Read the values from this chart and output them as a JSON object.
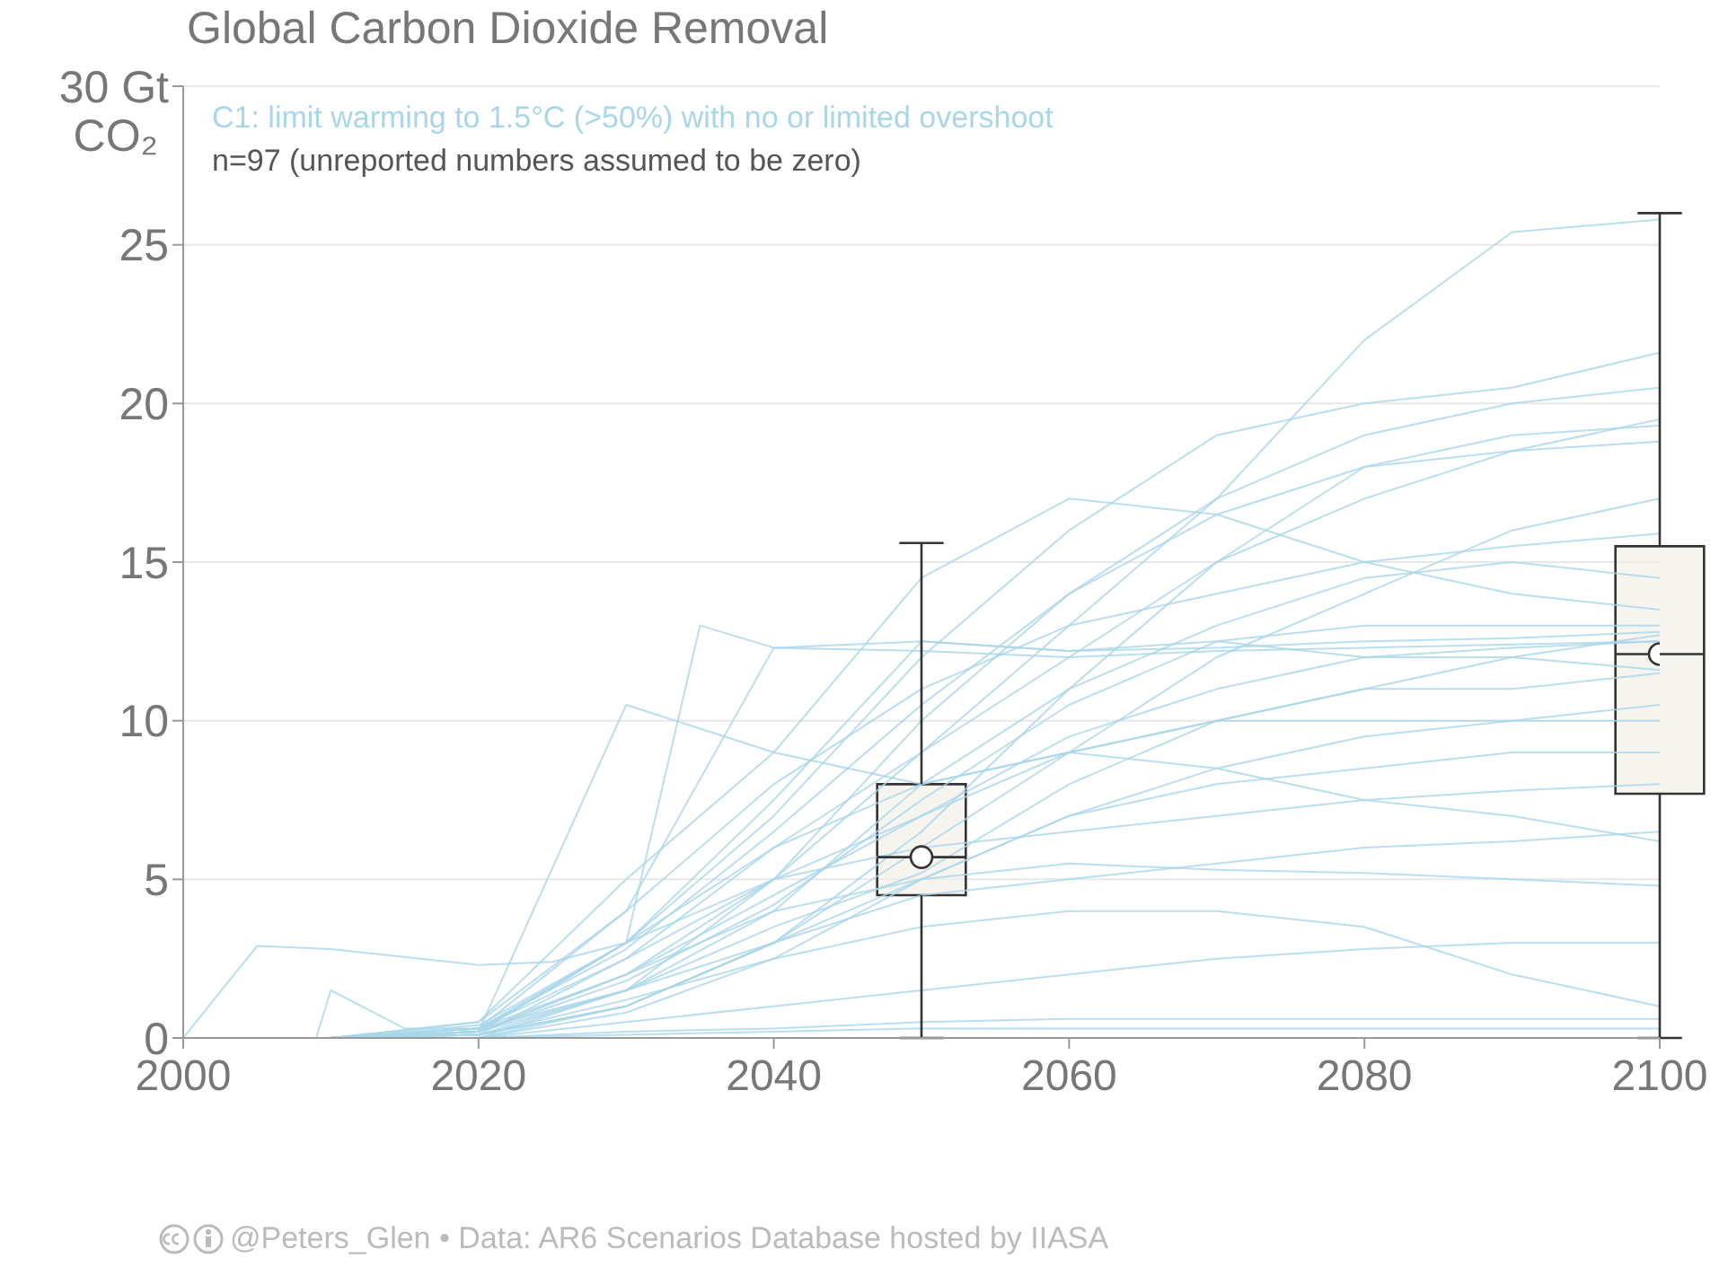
{
  "chart_data": {
    "type": "line",
    "title": "Global Carbon Dioxide Removal",
    "subtitle": "C1: limit warming to 1.5°C (>50%) with no or limited overshoot",
    "ylabel": "CO₂",
    "annotations": [
      "n=97 (unreported numbers assumed to be zero)",
      "@Peters_Glen • Data: AR6 Scenarios Database hosted by IIASA"
    ],
    "x": [
      2000,
      2010,
      2020,
      2030,
      2040,
      2050,
      2060,
      2070,
      2080,
      2090,
      2100
    ],
    "xlim": [
      2000,
      2100
    ],
    "xticks": [
      2000,
      2020,
      2040,
      2060,
      2080,
      2100
    ],
    "ylim": [
      0,
      30
    ],
    "yticks": [
      0,
      5,
      10,
      15,
      20,
      25,
      {
        "value": 30,
        "label": "30 Gt"
      }
    ],
    "grid": "y",
    "series": [
      {
        "color": "#a9d6e8",
        "values": [
          0,
          0,
          0.3,
          2,
          5,
          9,
          13,
          17,
          22,
          25.4,
          25.8
        ]
      },
      {
        "color": "#a9d6e8",
        "values": [
          0,
          0,
          0.4,
          3,
          7,
          12,
          16,
          19,
          20,
          20.5,
          21.6
        ]
      },
      {
        "color": "#a9d6e8",
        "values": [
          0,
          0,
          0.2,
          1.5,
          5,
          10,
          14,
          17,
          19,
          20,
          20.5
        ]
      },
      {
        "color": "#a9d6e8",
        "values": [
          0,
          0,
          0.1,
          2.5,
          6,
          9,
          12,
          15,
          17,
          18.5,
          19.5
        ]
      },
      {
        "color": "#a9d6e8",
        "values": [
          0,
          0,
          0.3,
          3,
          7.5,
          12.5,
          12.2,
          12.3,
          12.5,
          12.6,
          12.8
        ]
      },
      {
        "color": "#a9d6e8",
        "values": [
          0,
          0,
          0,
          1,
          3,
          6,
          9,
          12,
          14,
          16,
          17
        ]
      },
      {
        "color": "#a9d6e8",
        "values": [
          0,
          0,
          0.2,
          2,
          4.5,
          7,
          9.5,
          11,
          12,
          12.3,
          12.5
        ]
      },
      {
        "color": "#a9d6e8",
        "values": [
          0,
          0,
          0.1,
          1.5,
          3.5,
          5.2,
          8,
          10,
          11,
          12,
          11.6
        ]
      },
      {
        "color": "#a9d6e8",
        "values": [
          0,
          0,
          0,
          0.8,
          2.5,
          5,
          7,
          8.5,
          9.5,
          10,
          10.5
        ]
      },
      {
        "color": "#a9d6e8",
        "values": [
          0,
          0,
          0.3,
          2.5,
          5,
          6,
          6.5,
          7,
          7.5,
          7.8,
          8
        ]
      },
      {
        "color": "#a9d6e8",
        "values": [
          0,
          0,
          0.2,
          2,
          4,
          5,
          5.5,
          5.3,
          5.2,
          5,
          4.8
        ]
      },
      {
        "color": "#a9d6e8",
        "values": [
          0,
          0,
          0.1,
          1,
          3,
          4.5,
          5,
          5.5,
          6,
          6.2,
          6.5
        ]
      },
      {
        "color": "#a9d6e8",
        "values": [
          0,
          0,
          0,
          0.5,
          1,
          1.5,
          2,
          2.5,
          2.8,
          3,
          3
        ]
      },
      {
        "color": "#a9d6e8",
        "values": [
          0,
          0,
          0,
          0.2,
          0.3,
          0.5,
          0.6,
          0.6,
          0.6,
          0.6,
          0.6
        ]
      },
      {
        "color": "#a9d6e8",
        "values": [
          0,
          0,
          0,
          0.1,
          0.2,
          0.3,
          0.3,
          0.3,
          0.3,
          0.3,
          0.3
        ]
      },
      {
        "color": "#a9d6e8",
        "values": [
          0,
          0,
          0.5,
          4,
          8,
          11,
          13,
          14,
          15,
          15.5,
          15.9
        ]
      },
      {
        "color": "#a9d6e8",
        "values": [
          0,
          0,
          0.2,
          3,
          6,
          8,
          9,
          8.5,
          7.5,
          7,
          6.2
        ]
      },
      {
        "color": "#a9d6e8",
        "values": [
          0,
          0,
          0.1,
          1.2,
          2.5,
          3.5,
          4,
          4,
          3.5,
          2,
          1
        ]
      },
      {
        "color": "#a9d6e8",
        "values": [
          0,
          0,
          0.3,
          2.8,
          6.5,
          10.5,
          14,
          16.5,
          18,
          19,
          19.3
        ]
      },
      {
        "color": "#a9d6e8",
        "values": [
          0,
          0,
          0,
          1.5,
          4,
          8,
          11,
          13,
          14.5,
          15,
          14.5
        ]
      },
      {
        "color": "#a9d6e8",
        "values": [
          0,
          0,
          0.2,
          1.8,
          4.2,
          7.5,
          10.5,
          12.5,
          13,
          13,
          13
        ]
      },
      {
        "color": "#a9d6e8",
        "values": [
          0,
          0,
          0.1,
          1,
          3,
          6.5,
          11,
          15,
          18,
          18.5,
          18.8
        ]
      },
      {
        "color": "#a9d6e8",
        "values": [
          0,
          0,
          0.5,
          5,
          9,
          14.5,
          17,
          16.5,
          15,
          14,
          13.5
        ]
      },
      {
        "color": "#a9d6e8",
        "values": [
          0,
          0,
          0.3,
          4,
          12.3,
          12.5,
          12.2,
          12.5,
          12,
          12,
          12.7
        ]
      },
      {
        "color": "#a9d6e8",
        "values": [
          0,
          0,
          0.2,
          10.5,
          9,
          8,
          9,
          10,
          10,
          10,
          10
        ]
      },
      {
        "color": "#a9d6e8",
        "x": [
          2000,
          2005,
          2010,
          2020,
          2025,
          2030,
          2040,
          2050,
          2060,
          2070,
          2080,
          2090,
          2100
        ],
        "values": [
          0,
          2.9,
          2.8,
          2.3,
          2.4,
          3,
          5,
          7,
          9,
          10,
          11,
          11,
          11.5
        ]
      },
      {
        "color": "#a9d6e8",
        "x": [
          2000,
          2010,
          2020,
          2030,
          2035,
          2040,
          2050,
          2060,
          2070,
          2080,
          2090,
          2100
        ],
        "values": [
          0,
          0,
          0.2,
          3,
          13,
          12.3,
          12.2,
          12,
          12.2,
          12.3,
          12.4,
          12.5
        ]
      },
      {
        "color": "#a9d6e8",
        "x": [
          2009,
          2010,
          2015,
          2020,
          2030,
          2040,
          2050,
          2060,
          2070,
          2080,
          2090,
          2100
        ],
        "values": [
          0,
          1.5,
          0.3,
          0.3,
          1.5,
          3,
          5,
          7,
          8,
          8.5,
          9,
          9
        ]
      },
      {
        "type": "box",
        "color": "#f0ede4",
        "x": [
          2050,
          2100
        ],
        "boxes": [
          {
            "low": 0,
            "q1": 4.5,
            "median": 5.7,
            "q3": 8,
            "high": 15.6,
            "mean": 5.7
          },
          {
            "low": 0,
            "q1": 7.7,
            "median": 12.1,
            "q3": 15.5,
            "high": 26,
            "mean": 12.1
          }
        ]
      }
    ]
  }
}
